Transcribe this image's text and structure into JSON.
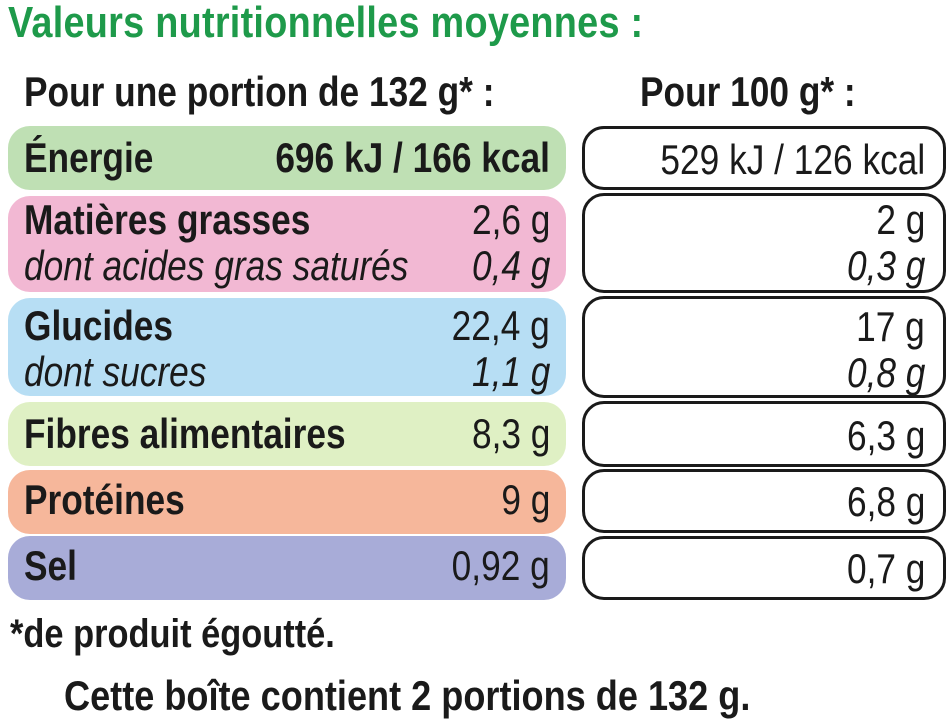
{
  "title": "Valeurs nutritionnelles moyennes :",
  "header": {
    "per_portion": "Pour une portion de 132 g* :",
    "per_100g": "Pour 100 g* :"
  },
  "colors": {
    "title": "#1e9a4a",
    "energie": "#bfe0b4",
    "graisses": "#f2b8d3",
    "glucides": "#b7def4",
    "fibres": "#dff0c4",
    "proteines": "#f6b79b",
    "sel": "#a8acd8"
  },
  "rows": {
    "energie": {
      "label": "Énergie",
      "portion": "696 kJ / 166 kcal",
      "per100": "529 kJ / 126 kcal"
    },
    "graisses": {
      "label": "Matières grasses",
      "portion": "2,6 g",
      "per100": "2 g",
      "sub_label": "dont acides gras saturés",
      "sub_portion": "0,4 g",
      "sub_per100": "0,3 g"
    },
    "glucides": {
      "label": "Glucides",
      "portion": "22,4 g",
      "per100": "17 g",
      "sub_label": "dont sucres",
      "sub_portion": "1,1 g",
      "sub_per100": "0,8 g"
    },
    "fibres": {
      "label": "Fibres alimentaires",
      "portion": "8,3 g",
      "per100": "6,3 g"
    },
    "proteines": {
      "label": "Protéines",
      "portion": "9 g",
      "per100": "6,8 g"
    },
    "sel": {
      "label": "Sel",
      "portion": "0,92 g",
      "per100": "0,7 g"
    }
  },
  "footnote": "*de produit égoutté.",
  "footer": "Cette boîte contient 2 portions de 132 g."
}
